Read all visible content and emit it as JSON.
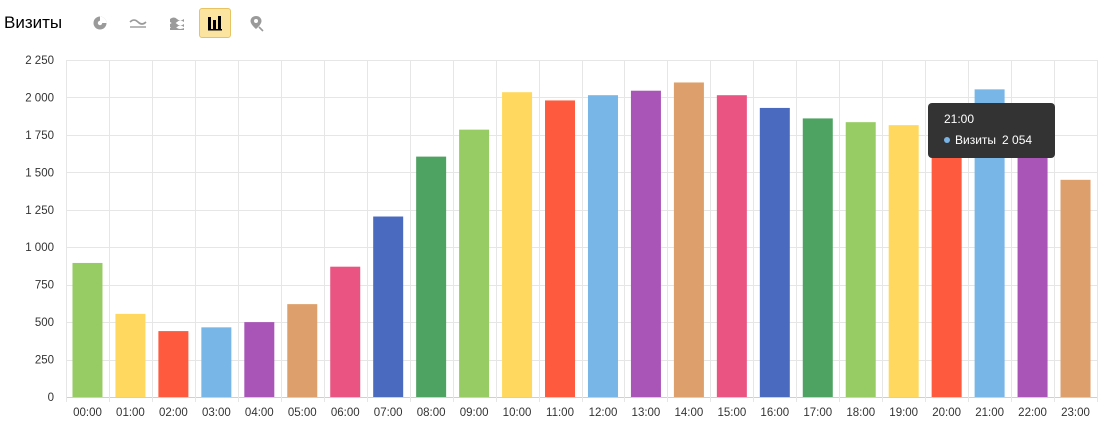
{
  "header": {
    "title": "Визиты",
    "buttons": [
      {
        "icon": "pie-chart-icon",
        "active": false
      },
      {
        "icon": "line-chart-icon",
        "active": false
      },
      {
        "icon": "area-chart-icon",
        "active": false
      },
      {
        "icon": "bar-chart-icon",
        "active": true
      },
      {
        "icon": "map-pin-icon",
        "active": false
      }
    ]
  },
  "tooltip": {
    "title": "21:00",
    "series": "Визиты",
    "value": "2 054",
    "color": "#7ab4e6"
  },
  "chart_data": {
    "type": "bar",
    "categories": [
      "00:00",
      "01:00",
      "02:00",
      "03:00",
      "04:00",
      "05:00",
      "06:00",
      "07:00",
      "08:00",
      "09:00",
      "10:00",
      "11:00",
      "12:00",
      "13:00",
      "14:00",
      "15:00",
      "16:00",
      "17:00",
      "18:00",
      "19:00",
      "20:00",
      "21:00",
      "22:00",
      "23:00"
    ],
    "series": [
      {
        "name": "Визиты",
        "values": [
          895,
          555,
          440,
          465,
          500,
          620,
          870,
          1205,
          1605,
          1785,
          2035,
          1980,
          2015,
          2045,
          2100,
          2015,
          1930,
          1860,
          1835,
          1815,
          1750,
          2054,
          1765,
          1450
        ]
      }
    ],
    "colors": [
      "#97cc64",
      "#ffd95f",
      "#fd5a3e",
      "#77b6e7",
      "#a955b8",
      "#dd9f6b",
      "#ea5482",
      "#4a6ac0",
      "#4ea362",
      "#97cc64",
      "#ffd95f",
      "#fd5a3e",
      "#77b6e7",
      "#a955b8",
      "#dd9f6b",
      "#ea5482",
      "#4a6ac0",
      "#4ea362",
      "#97cc64",
      "#ffd95f",
      "#fd5a3e",
      "#77b6e7",
      "#a955b8",
      "#dd9f6b"
    ],
    "y_ticks": [
      "0",
      "250",
      "500",
      "750",
      "1 000",
      "1 250",
      "1 500",
      "1 750",
      "2 000",
      "2 250"
    ],
    "ylim": [
      0,
      2250
    ],
    "grid": true,
    "legend": "none"
  }
}
